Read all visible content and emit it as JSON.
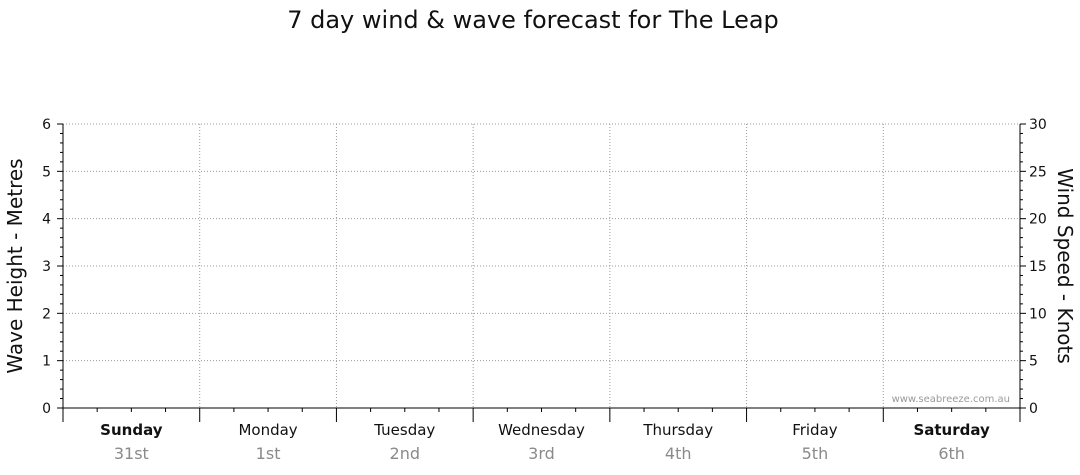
{
  "chart_data": {
    "type": "line",
    "title": "7 day wind & wave forecast for The Leap",
    "ylabel": "Wave Height - Metres",
    "y2label": "Wind Speed - Knots",
    "ylim": [
      0,
      6
    ],
    "y2lim": [
      0,
      30
    ],
    "yticks": [
      "0",
      "1",
      "2",
      "3",
      "4",
      "5",
      "6"
    ],
    "y2ticks": [
      "0",
      "5",
      "10",
      "15",
      "20",
      "25",
      "30"
    ],
    "days": [
      {
        "name": "Sunday",
        "date": "31st",
        "bold": true
      },
      {
        "name": "Monday",
        "date": "1st",
        "bold": false
      },
      {
        "name": "Tuesday",
        "date": "2nd",
        "bold": false
      },
      {
        "name": "Wednesday",
        "date": "3rd",
        "bold": false
      },
      {
        "name": "Thursday",
        "date": "4th",
        "bold": false
      },
      {
        "name": "Friday",
        "date": "5th",
        "bold": false
      },
      {
        "name": "Saturday",
        "date": "6th",
        "bold": true
      }
    ],
    "series": [],
    "grid": true,
    "watermark": "www.seabreeze.com.au"
  }
}
